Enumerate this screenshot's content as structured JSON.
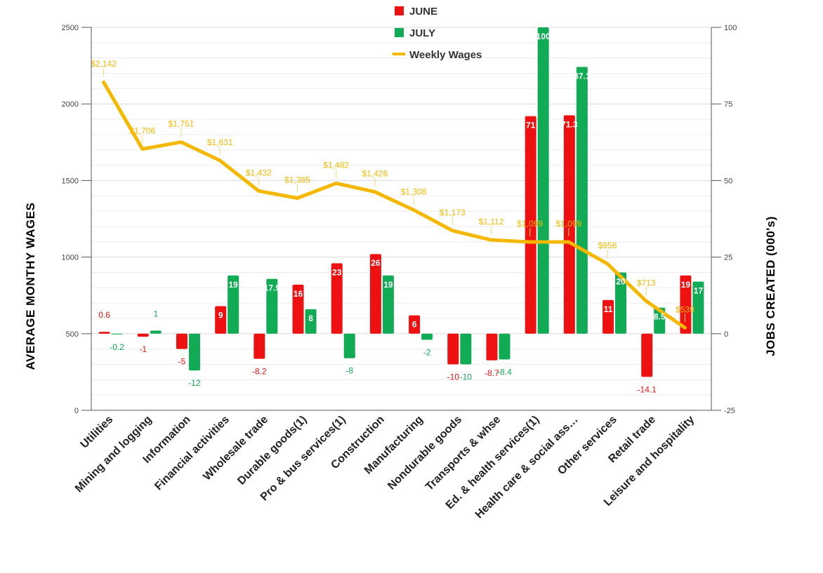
{
  "chart_data": {
    "type": "bar",
    "categories": [
      "Utilities",
      "Mining and logging",
      "Information",
      "Financial activities",
      "Wholesale trade",
      "Durable goods(1)",
      "Pro & bus services(1)",
      "Construction",
      "Manufacturing",
      "Nondurable goods",
      "Transports & whse",
      "Ed. & health services(1)",
      "Health care & social ass…",
      "Other services",
      "Retail trade",
      "Leisure and hospitality"
    ],
    "series": [
      {
        "name": "JUNE",
        "type": "bar",
        "axis": "right",
        "color": "#ee1111",
        "values": [
          0.6,
          -1,
          -5,
          9,
          -8.2,
          16,
          23,
          26,
          6,
          -10,
          -8.7,
          71,
          71.3,
          11,
          -14.1,
          19
        ],
        "labels": [
          "0.6",
          "-1",
          "-5",
          "9",
          "-8.2",
          "16",
          "23",
          "26",
          "6",
          "-10",
          "-8.7",
          "71",
          "71.3",
          "11",
          "-14.1",
          "19"
        ]
      },
      {
        "name": "JULY",
        "type": "bar",
        "axis": "right",
        "color": "#11aa55",
        "values": [
          -0.2,
          1,
          -12,
          19,
          17.9,
          8,
          -8,
          19,
          -2,
          -10,
          -8.4,
          100,
          87.1,
          20,
          8.5,
          17
        ],
        "labels": [
          "-0.2",
          "1",
          "-12",
          "19",
          "17.9",
          "8",
          "-8",
          "19",
          "-2",
          "-10",
          "-8.4",
          "100",
          "87.1",
          "20",
          "8.5",
          "17"
        ]
      },
      {
        "name": "Weekly Wages",
        "type": "line",
        "axis": "left",
        "color": "#f5b800",
        "values": [
          2142,
          1706,
          1751,
          1631,
          1432,
          1385,
          1482,
          1426,
          1308,
          1173,
          1112,
          1099,
          1099,
          956,
          713,
          539
        ],
        "labels": [
          "$2,142",
          "$1,706",
          "$1,751",
          "$1,631",
          "$1,432",
          "$1,385",
          "$1,482",
          "$1,426",
          "$1,308",
          "$1,173",
          "$1,112",
          "$1,099",
          "$1,099",
          "$956",
          "$713",
          "$539"
        ]
      }
    ],
    "ylabel": "AVERAGE MONTHY WAGES",
    "y2label": "JOBS CREATED (000's)",
    "ylim": [
      0,
      2500
    ],
    "y2lim": [
      -25,
      100
    ],
    "yticks": [
      "0",
      "500",
      "1000",
      "1500",
      "2000",
      "2500"
    ],
    "y2ticks": [
      "-25",
      "0",
      "25",
      "50",
      "75",
      "100"
    ],
    "grid": true,
    "legend": "top-center"
  }
}
